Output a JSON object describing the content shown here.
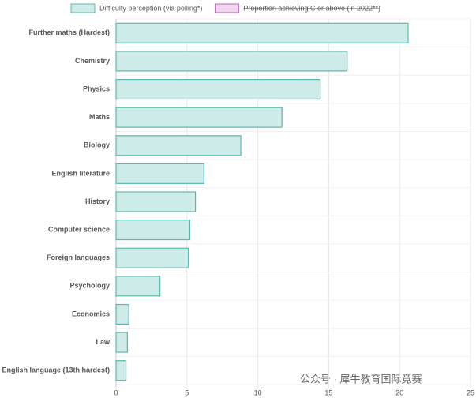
{
  "chart_data": {
    "type": "barh",
    "series": [
      {
        "name": "Difficulty perception (via polling*)",
        "color": "#5cb8ae",
        "fill": "#cdebe8",
        "values": [
          20.6,
          16.3,
          14.4,
          11.7,
          8.8,
          6.2,
          5.6,
          5.2,
          5.1,
          3.1,
          0.9,
          0.8,
          0.7
        ]
      },
      {
        "name": "Proportion achieving C or above (in 2022**)",
        "color": "#b36bb3",
        "fill": "#f1d5f1",
        "hidden": true
      }
    ],
    "categories": [
      "Further maths (Hardest)",
      "Chemistry",
      "Physics",
      "Maths",
      "Biology",
      "English literature",
      "History",
      "Computer science",
      "Foreign languages",
      "Psychology",
      "Economics",
      "Law",
      "English language (13th hardest)"
    ],
    "xlim": [
      0,
      25
    ],
    "xticks": [
      0,
      5,
      10,
      15,
      20,
      25
    ],
    "grid": true,
    "watermark": "公众号 · 犀牛教育国际竞赛"
  }
}
